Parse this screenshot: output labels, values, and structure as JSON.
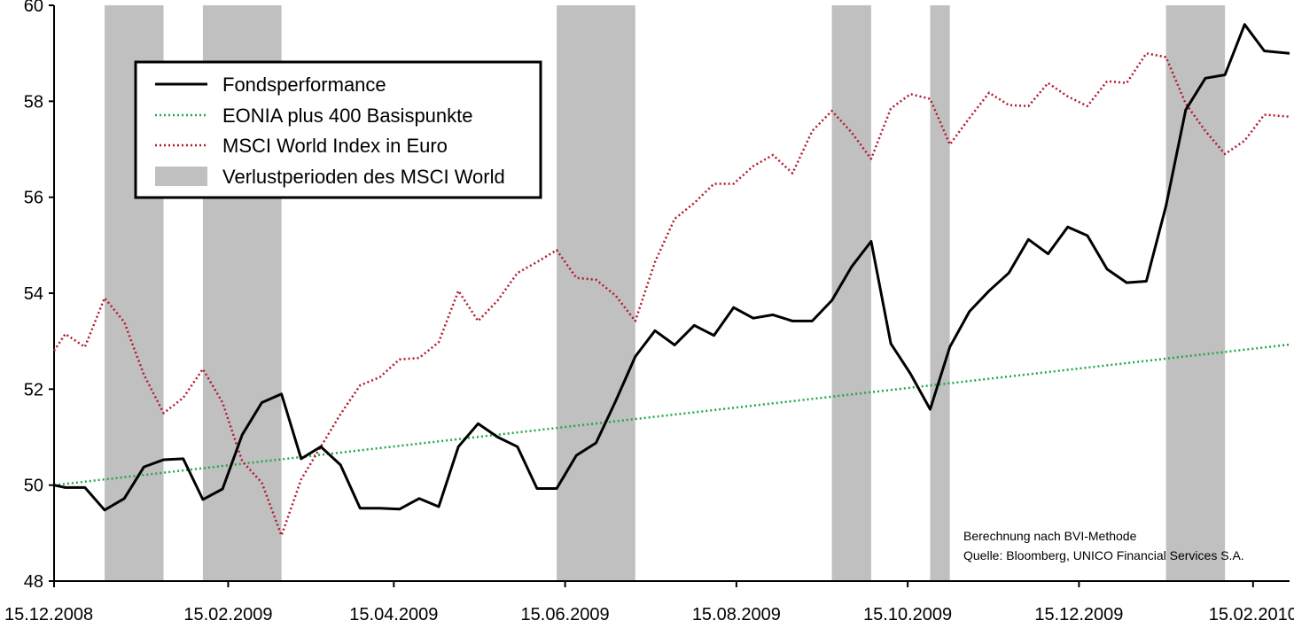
{
  "chart_data": {
    "type": "line",
    "x_dates": [
      "15.12.2008",
      "29.12.2008",
      "12.01.2009",
      "26.01.2009",
      "09.02.2009",
      "23.02.2009",
      "09.03.2009",
      "23.03.2009",
      "06.04.2009",
      "20.04.2009",
      "04.05.2009",
      "18.05.2009",
      "01.06.2009",
      "15.06.2009",
      "29.06.2009",
      "13.07.2009",
      "27.07.2009",
      "10.08.2009",
      "24.08.2009",
      "07.09.2009",
      "21.09.2009",
      "05.10.2009",
      "19.10.2009",
      "02.11.2009",
      "16.11.2009",
      "30.11.2009",
      "14.12.2009",
      "28.12.2009",
      "11.01.2010",
      "25.01.2010",
      "08.02.2010",
      "22.02.2010"
    ],
    "ylim": [
      48,
      60
    ],
    "y_ticks": [
      48,
      50,
      52,
      54,
      56,
      58,
      60
    ],
    "x_tick_labels": [
      {
        "label": "15.12.2008",
        "day": 0
      },
      {
        "label": "15.02.2009",
        "day": 62
      },
      {
        "label": "15.04.2009",
        "day": 121
      },
      {
        "label": "15.06.2009",
        "day": 182
      },
      {
        "label": "15.08.2009",
        "day": 243
      },
      {
        "label": "15.10.2009",
        "day": 304
      },
      {
        "label": "15.12.2009",
        "day": 365
      },
      {
        "label": "15.02.2010",
        "day": 427
      }
    ],
    "x_range_days": [
      0,
      440
    ],
    "series": [
      {
        "name": "Fondsperformance",
        "color": "#000000",
        "style": "solid",
        "points": [
          [
            0,
            50.0
          ],
          [
            4,
            49.95
          ],
          [
            11,
            49.95
          ],
          [
            18,
            49.48
          ],
          [
            25,
            49.72
          ],
          [
            32,
            50.38
          ],
          [
            39,
            50.53
          ],
          [
            46,
            50.55
          ],
          [
            53,
            49.7
          ],
          [
            60,
            49.92
          ],
          [
            67,
            51.05
          ],
          [
            74,
            51.72
          ],
          [
            81,
            51.9
          ],
          [
            88,
            50.55
          ],
          [
            95,
            50.8
          ],
          [
            102,
            50.42
          ],
          [
            109,
            49.52
          ],
          [
            116,
            49.52
          ],
          [
            123,
            49.5
          ],
          [
            130,
            49.72
          ],
          [
            137,
            49.55
          ],
          [
            144,
            50.8
          ],
          [
            151,
            51.28
          ],
          [
            158,
            51.0
          ],
          [
            165,
            50.8
          ],
          [
            172,
            49.93
          ],
          [
            179,
            49.93
          ],
          [
            186,
            50.62
          ],
          [
            193,
            50.88
          ],
          [
            200,
            51.75
          ],
          [
            207,
            52.68
          ],
          [
            214,
            53.22
          ],
          [
            221,
            52.92
          ],
          [
            228,
            53.33
          ],
          [
            235,
            53.12
          ],
          [
            242,
            53.7
          ],
          [
            249,
            53.48
          ],
          [
            256,
            53.55
          ],
          [
            263,
            53.42
          ],
          [
            270,
            53.42
          ],
          [
            277,
            53.85
          ],
          [
            284,
            54.55
          ],
          [
            291,
            55.08
          ],
          [
            298,
            52.95
          ],
          [
            305,
            52.32
          ],
          [
            312,
            51.58
          ],
          [
            319,
            52.88
          ],
          [
            326,
            53.62
          ],
          [
            333,
            54.05
          ],
          [
            340,
            54.42
          ],
          [
            347,
            55.12
          ],
          [
            354,
            54.82
          ],
          [
            361,
            55.38
          ],
          [
            368,
            55.2
          ],
          [
            375,
            54.5
          ],
          [
            382,
            54.22
          ],
          [
            389,
            54.25
          ],
          [
            396,
            55.82
          ],
          [
            403,
            57.82
          ],
          [
            410,
            58.48
          ],
          [
            417,
            58.55
          ],
          [
            424,
            59.6
          ],
          [
            431,
            59.05
          ],
          [
            440,
            59.0
          ]
        ]
      },
      {
        "name": "EONIA plus 400 Basispunkte",
        "color": "#1fa845",
        "style": "dotted",
        "points": [
          [
            0,
            50.0
          ],
          [
            440,
            52.93
          ]
        ]
      },
      {
        "name": "MSCI World Index in Euro",
        "color": "#b2182b",
        "style": "dotted",
        "points": [
          [
            0,
            52.8
          ],
          [
            4,
            53.15
          ],
          [
            11,
            52.88
          ],
          [
            18,
            53.9
          ],
          [
            25,
            53.4
          ],
          [
            32,
            52.3
          ],
          [
            39,
            51.5
          ],
          [
            46,
            51.82
          ],
          [
            53,
            52.42
          ],
          [
            60,
            51.72
          ],
          [
            67,
            50.5
          ],
          [
            74,
            50.05
          ],
          [
            81,
            48.95
          ],
          [
            88,
            50.12
          ],
          [
            95,
            50.8
          ],
          [
            102,
            51.48
          ],
          [
            109,
            52.08
          ],
          [
            116,
            52.25
          ],
          [
            123,
            52.62
          ],
          [
            130,
            52.65
          ],
          [
            137,
            52.98
          ],
          [
            144,
            54.05
          ],
          [
            151,
            53.42
          ],
          [
            158,
            53.85
          ],
          [
            165,
            54.42
          ],
          [
            172,
            54.65
          ],
          [
            179,
            54.9
          ],
          [
            186,
            54.32
          ],
          [
            193,
            54.28
          ],
          [
            200,
            53.95
          ],
          [
            207,
            53.42
          ],
          [
            214,
            54.65
          ],
          [
            221,
            55.55
          ],
          [
            228,
            55.88
          ],
          [
            235,
            56.28
          ],
          [
            242,
            56.28
          ],
          [
            249,
            56.65
          ],
          [
            256,
            56.88
          ],
          [
            263,
            56.5
          ],
          [
            270,
            57.38
          ],
          [
            277,
            57.8
          ],
          [
            284,
            57.35
          ],
          [
            291,
            56.8
          ],
          [
            298,
            57.85
          ],
          [
            305,
            58.15
          ],
          [
            312,
            58.05
          ],
          [
            319,
            57.1
          ],
          [
            326,
            57.65
          ],
          [
            333,
            58.18
          ],
          [
            340,
            57.92
          ],
          [
            347,
            57.9
          ],
          [
            354,
            58.38
          ],
          [
            361,
            58.1
          ],
          [
            368,
            57.9
          ],
          [
            375,
            58.42
          ],
          [
            382,
            58.38
          ],
          [
            389,
            59.0
          ],
          [
            396,
            58.92
          ],
          [
            403,
            57.95
          ],
          [
            410,
            57.38
          ],
          [
            417,
            56.9
          ],
          [
            424,
            57.18
          ],
          [
            431,
            57.72
          ],
          [
            440,
            57.68
          ]
        ]
      }
    ],
    "loss_periods": [
      [
        18,
        39
      ],
      [
        53,
        81
      ],
      [
        179,
        207
      ],
      [
        277,
        291
      ],
      [
        312,
        319
      ],
      [
        396,
        417
      ]
    ],
    "legend": {
      "placement": "top-left",
      "entries": [
        {
          "label": "Fondsperformance",
          "kind": "line-solid",
          "color": "#000000"
        },
        {
          "label": "EONIA plus 400 Basispunkte",
          "kind": "line-dotted",
          "color": "#1fa845"
        },
        {
          "label": "MSCI World Index in Euro",
          "kind": "line-dotted",
          "color": "#b2182b"
        },
        {
          "label": "Verlustperioden des MSCI World",
          "kind": "box",
          "color": "#c0c0c0"
        }
      ]
    },
    "notes": [
      "Berechnung nach BVI-Methode",
      "Quelle: Bloomberg, UNICO Financial Services S.A."
    ],
    "grid": false
  }
}
